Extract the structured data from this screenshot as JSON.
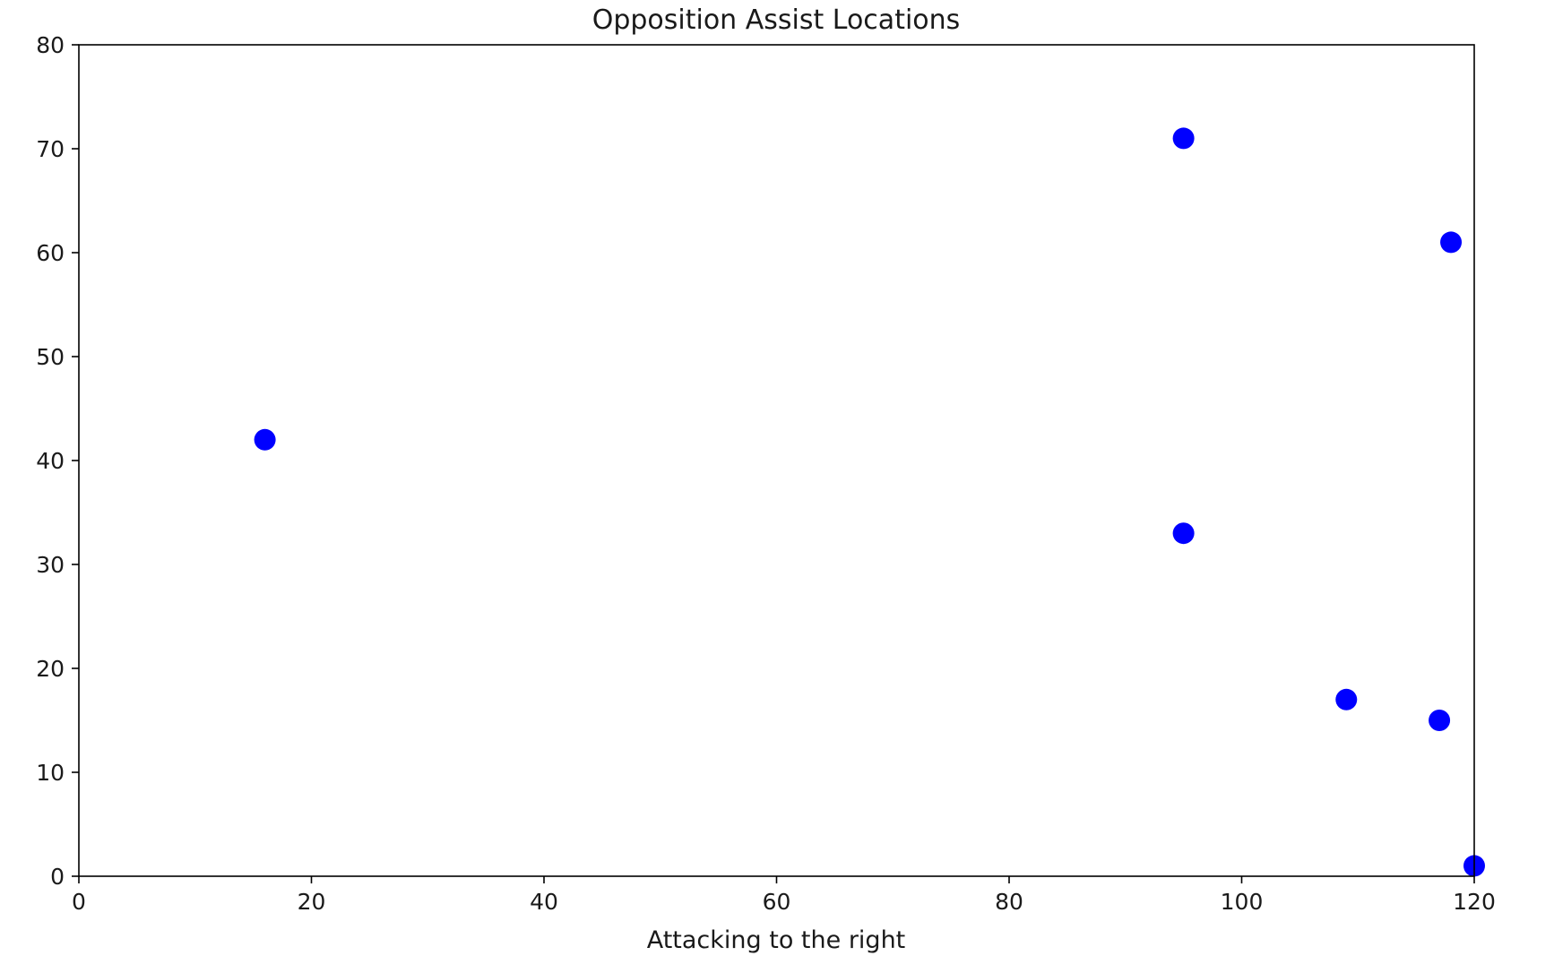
{
  "chart_data": {
    "type": "scatter",
    "title": "Opposition Assist Locations",
    "xlabel": "Attacking to the right",
    "ylabel": "",
    "xlim": [
      0,
      120
    ],
    "ylim": [
      0,
      80
    ],
    "xticks": [
      0,
      20,
      40,
      60,
      80,
      100,
      120
    ],
    "yticks": [
      0,
      10,
      20,
      30,
      40,
      50,
      60,
      70,
      80
    ],
    "grid": false,
    "marker_color": "#0000ff",
    "points": [
      {
        "x": 16,
        "y": 42
      },
      {
        "x": 95,
        "y": 71
      },
      {
        "x": 95,
        "y": 33
      },
      {
        "x": 109,
        "y": 17
      },
      {
        "x": 117,
        "y": 15
      },
      {
        "x": 118,
        "y": 61
      },
      {
        "x": 120,
        "y": 1
      }
    ]
  }
}
